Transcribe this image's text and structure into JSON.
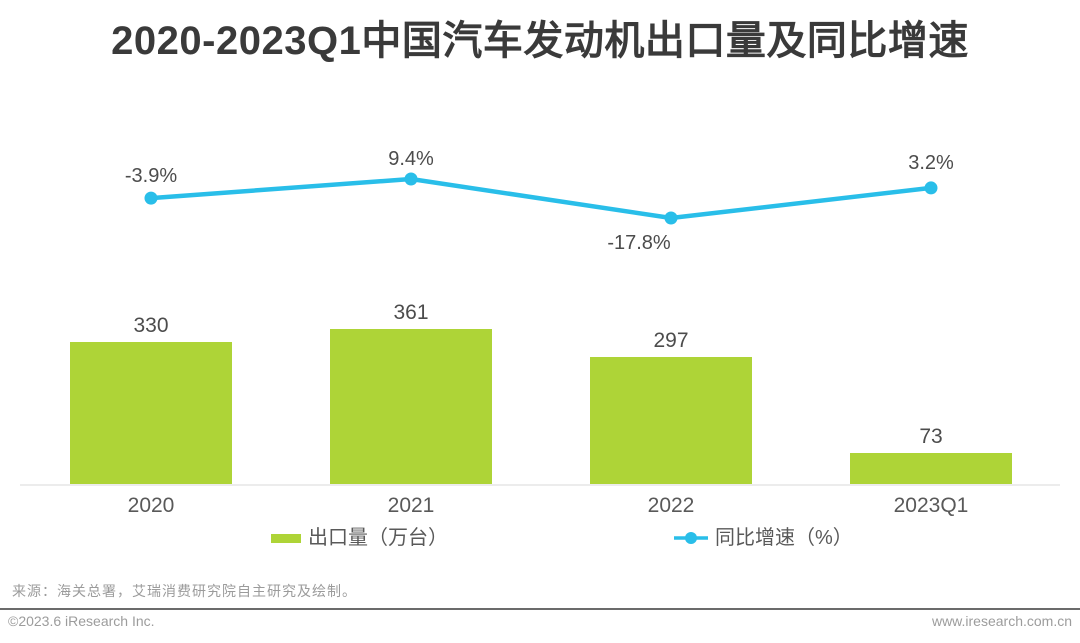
{
  "title": "2020-2023Q1中国汽车发动机出口量及同比增速",
  "chart_data": {
    "type": "bar",
    "subtype": "bar-line-combo",
    "title": "2020-2023Q1中国汽车发动机出口量及同比增速",
    "categories": [
      "2020",
      "2021",
      "2022",
      "2023Q1"
    ],
    "series": [
      {
        "name": "出口量（万台）",
        "type": "bar",
        "values": [
          330,
          361,
          297,
          73
        ],
        "data_labels": [
          "330",
          "361",
          "297",
          "73"
        ],
        "color": "#AED437"
      },
      {
        "name": "同比增速（%）",
        "type": "line",
        "values": [
          -3.9,
          9.4,
          -17.8,
          3.2
        ],
        "data_labels": [
          "-3.9%",
          "9.4%",
          "-17.8%",
          "3.2%"
        ],
        "color": "#29BEE9"
      }
    ],
    "legend_position": "bottom",
    "grid": false,
    "y_axis_visible": false,
    "x_axis_line_color": "#ECECEC"
  },
  "source_note": "来源：海关总署，艾瑞消费研究院自主研究及绘制。",
  "footer": {
    "copyright": "©2023.6 iResearch Inc.",
    "website": "www.iresearch.com.cn"
  },
  "colors": {
    "bar": "#AED437",
    "line": "#29BEE9",
    "title_text": "#3A3A3A",
    "data_label_text": "#4C4C4C",
    "axis_line": "#ECECEC",
    "footer_divider": "#6B6B6B"
  }
}
